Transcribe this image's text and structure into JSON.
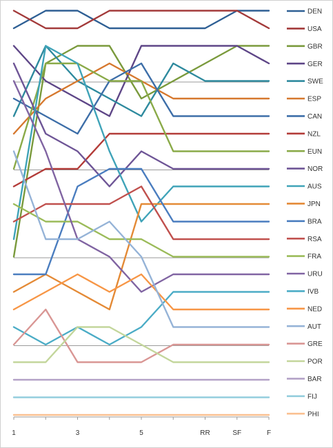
{
  "chart_data": {
    "type": "line",
    "title": "",
    "xlabel": "",
    "ylabel": "",
    "x": [
      "1",
      "2",
      "3",
      "4",
      "5",
      "6",
      "RR",
      "SF",
      "F"
    ],
    "x_tick_labels": [
      "1",
      "",
      "3",
      "",
      "5",
      "",
      "RR",
      "SF",
      "F"
    ],
    "y_reversed": true,
    "ylim": [
      1,
      24
    ],
    "grid": "every 5th rank",
    "legend": "right",
    "series": [
      {
        "name": "DEN",
        "color": "#2E5F94",
        "values": [
          2,
          1,
          1,
          2,
          2,
          2,
          2,
          1,
          1
        ]
      },
      {
        "name": "USA",
        "color": "#A33A3A",
        "values": [
          1,
          2,
          2,
          1,
          1,
          1,
          1,
          1,
          2
        ]
      },
      {
        "name": "GBR",
        "color": "#7A9A3C",
        "values": [
          15,
          4,
          3,
          3,
          6,
          5,
          4,
          3,
          3
        ]
      },
      {
        "name": "GER",
        "color": "#5E4687",
        "values": [
          3,
          5,
          6,
          7,
          3,
          3,
          3,
          3,
          4
        ]
      },
      {
        "name": "SWE",
        "color": "#2E8A9E",
        "values": [
          7,
          3,
          5,
          6,
          7,
          4,
          5,
          5,
          5
        ]
      },
      {
        "name": "ESP",
        "color": "#D6782E",
        "values": [
          8,
          6,
          5,
          4,
          5,
          6,
          6,
          6,
          6
        ]
      },
      {
        "name": "CAN",
        "color": "#3D6EA8",
        "values": [
          6,
          7,
          8,
          5,
          4,
          7,
          7,
          7,
          7
        ]
      },
      {
        "name": "NZL",
        "color": "#B33C39",
        "values": [
          11,
          10,
          10,
          8,
          8,
          8,
          8,
          8,
          8
        ]
      },
      {
        "name": "EUN",
        "color": "#8AAA48",
        "values": [
          10,
          4,
          4,
          5,
          5,
          9,
          9,
          9,
          9
        ]
      },
      {
        "name": "NOR",
        "color": "#6E5596",
        "values": [
          4,
          8,
          9,
          11,
          9,
          10,
          10,
          10,
          10
        ]
      },
      {
        "name": "AUS",
        "color": "#3FA3B8",
        "values": [
          14,
          3,
          4,
          9,
          13,
          11,
          11,
          11,
          11
        ]
      },
      {
        "name": "JPN",
        "color": "#E48A36",
        "values": [
          17,
          16,
          17,
          18,
          12,
          12,
          12,
          12,
          12
        ]
      },
      {
        "name": "BRA",
        "color": "#4A7DBF",
        "values": [
          16,
          16,
          11,
          10,
          10,
          13,
          13,
          13,
          13
        ]
      },
      {
        "name": "RSA",
        "color": "#C0504D",
        "values": [
          13,
          12,
          12,
          12,
          11,
          14,
          14,
          14,
          14
        ]
      },
      {
        "name": "FRA",
        "color": "#9BBB59",
        "values": [
          12,
          13,
          13,
          14,
          14,
          15,
          15,
          15,
          15
        ]
      },
      {
        "name": "URU",
        "color": "#8064A2",
        "values": [
          5,
          9,
          14,
          15,
          17,
          16,
          16,
          16,
          16
        ]
      },
      {
        "name": "IVB",
        "color": "#4BACC6",
        "values": [
          19,
          20,
          19,
          20,
          19,
          17,
          17,
          17,
          17
        ]
      },
      {
        "name": "NED",
        "color": "#F79646",
        "values": [
          18,
          17,
          16,
          17,
          16,
          18,
          18,
          18,
          18
        ]
      },
      {
        "name": "AUT",
        "color": "#95B3D7",
        "values": [
          9,
          14,
          14,
          13,
          15,
          19,
          19,
          19,
          19
        ]
      },
      {
        "name": "GRE",
        "color": "#D99694",
        "values": [
          20,
          18,
          21,
          21,
          21,
          20,
          20,
          20,
          20
        ]
      },
      {
        "name": "POR",
        "color": "#C3D69B",
        "values": [
          21,
          21,
          19,
          19,
          20,
          21,
          21,
          21,
          21
        ]
      },
      {
        "name": "BAR",
        "color": "#B3A2C7",
        "values": [
          22,
          22,
          22,
          22,
          22,
          22,
          22,
          22,
          22
        ]
      },
      {
        "name": "FIJ",
        "color": "#93CDDD",
        "values": [
          23,
          23,
          23,
          23,
          23,
          23,
          23,
          23,
          23
        ]
      },
      {
        "name": "PHI",
        "color": "#FAC090",
        "values": [
          24,
          24,
          24,
          24,
          24,
          24,
          24,
          24,
          24
        ]
      }
    ]
  }
}
